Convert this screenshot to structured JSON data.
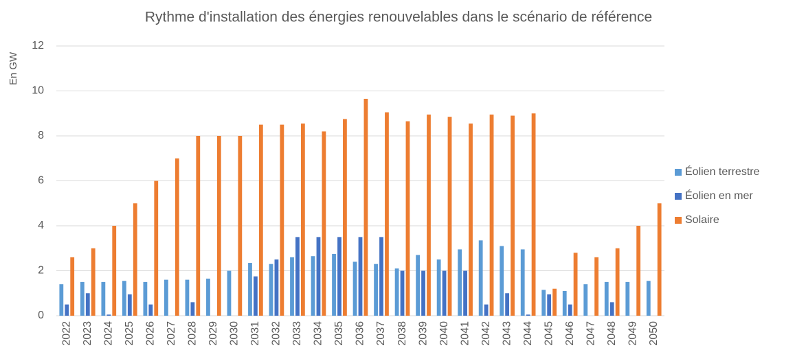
{
  "chart_data": {
    "type": "bar",
    "title": "Rythme d'installation des énergies renouvelables dans le scénario de référence",
    "y_label": "En GW",
    "categories": [
      "2022",
      "2023",
      "2024",
      "2025",
      "2026",
      "2027",
      "2028",
      "2029",
      "2030",
      "2031",
      "2032",
      "2033",
      "2034",
      "2035",
      "2036",
      "2037",
      "2038",
      "2039",
      "2040",
      "2041",
      "2042",
      "2043",
      "2044",
      "2045",
      "2046",
      "2047",
      "2048",
      "2049",
      "2050"
    ],
    "series": [
      {
        "name": "Éolien terrestre",
        "color": "#5b9bd5",
        "values": [
          1.4,
          1.5,
          1.5,
          1.55,
          1.5,
          1.6,
          1.6,
          1.65,
          2.0,
          2.35,
          2.3,
          2.6,
          2.65,
          2.75,
          2.4,
          2.3,
          2.1,
          2.7,
          2.5,
          2.95,
          3.35,
          3.1,
          2.95,
          1.15,
          1.1,
          1.4,
          1.5,
          1.5,
          1.55
        ]
      },
      {
        "name": "Éolien en mer",
        "color": "#4472c4",
        "values": [
          0.5,
          1.0,
          0.05,
          0.95,
          0.5,
          0,
          0.6,
          0,
          0,
          1.75,
          2.5,
          3.5,
          3.5,
          3.5,
          3.5,
          3.5,
          2.0,
          2.0,
          2.0,
          2.0,
          0.5,
          1.0,
          0.05,
          0.95,
          0.5,
          0,
          0.6,
          0,
          0
        ]
      },
      {
        "name": "Solaire",
        "color": "#ed7d31",
        "values": [
          2.6,
          3,
          4,
          5,
          6,
          7,
          8,
          8,
          8,
          8.5,
          8.5,
          8.55,
          8.2,
          8.75,
          9.65,
          9.05,
          8.65,
          8.95,
          8.85,
          8.55,
          8.95,
          8.9,
          9.0,
          1.2,
          2.8,
          2.6,
          3.0,
          4.0,
          5.0
        ]
      }
    ],
    "ylim": [
      0,
      12
    ],
    "yticks": [
      0,
      2,
      4,
      6,
      8,
      10,
      12
    ],
    "grid": true,
    "legend": "right"
  }
}
